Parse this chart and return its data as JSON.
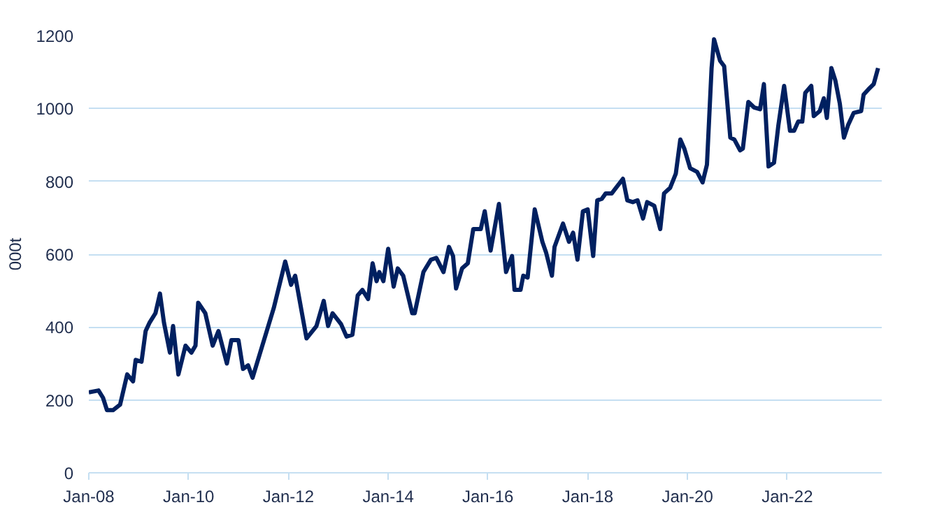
{
  "chart_data": {
    "type": "line",
    "ylabel": "000t",
    "grid": "y",
    "marker": "none",
    "line_style": "solid",
    "xlim": [
      "2008-01-01",
      "2023-11-24"
    ],
    "xticks": [
      {
        "value": "2008-01",
        "label": "Jan-08"
      },
      {
        "value": "2010-01",
        "label": "Jan-10"
      },
      {
        "value": "2012-01",
        "label": "Jan-12"
      },
      {
        "value": "2014-01",
        "label": "Jan-14"
      },
      {
        "value": "2016-01",
        "label": "Jan-16"
      },
      {
        "value": "2018-01",
        "label": "Jan-18"
      },
      {
        "value": "2020-01",
        "label": "Jan-20"
      },
      {
        "value": "2022-01",
        "label": "Jan-22"
      }
    ],
    "ylim": [
      0,
      1200
    ],
    "yticks": [
      0,
      200,
      400,
      600,
      800,
      1000,
      1200
    ],
    "x": [
      "2008-01-01",
      "2008-03-12",
      "2008-04-14",
      "2008-05-13",
      "2008-06-26",
      "2008-08-17",
      "2008-10-08",
      "2008-11-20",
      "2008-12-09",
      "2009-01-21",
      "2009-02-20",
      "2009-03-22",
      "2009-05-03",
      "2009-06-05",
      "2009-07-04",
      "2009-08-17",
      "2009-09-09",
      "2009-10-18",
      "2009-12-09",
      "2010-01-21",
      "2010-02-20",
      "2010-03-12",
      "2010-05-03",
      "2010-06-26",
      "2010-08-07",
      "2010-10-08",
      "2010-11-10",
      "2011-01-01",
      "2011-02-03",
      "2011-03-12",
      "2011-04-14",
      "2011-09-16",
      "2011-12-09",
      "2012-01-21",
      "2012-02-20",
      "2012-05-13",
      "2012-07-25",
      "2012-09-16",
      "2012-10-18",
      "2012-11-20",
      "2013-01-21",
      "2013-03-02",
      "2013-04-14",
      "2013-05-23",
      "2013-06-26",
      "2013-08-07",
      "2013-09-09",
      "2013-10-08",
      "2013-10-28",
      "2013-11-27",
      "2014-01-01",
      "2014-02-10",
      "2014-03-12",
      "2014-04-21",
      "2014-06-26",
      "2014-07-14",
      "2014-09-16",
      "2014-11-10",
      "2014-12-19",
      "2015-02-10",
      "2015-03-22",
      "2015-04-21",
      "2015-05-13",
      "2015-06-26",
      "2015-08-07",
      "2015-09-16",
      "2015-11-10",
      "2015-12-09",
      "2016-01-21",
      "2016-03-22",
      "2016-05-13",
      "2016-06-26",
      "2016-07-14",
      "2016-08-27",
      "2016-09-16",
      "2016-10-18",
      "2016-12-09",
      "2017-02-03",
      "2017-03-02",
      "2017-04-14",
      "2017-05-03",
      "2017-07-04",
      "2017-08-17",
      "2017-09-16",
      "2017-10-18",
      "2017-11-27",
      "2018-01-01",
      "2018-02-10",
      "2018-03-12",
      "2018-04-14",
      "2018-05-13",
      "2018-06-26",
      "2018-09-16",
      "2018-10-18",
      "2018-11-27",
      "2019-01-01",
      "2019-02-10",
      "2019-03-12",
      "2019-05-03",
      "2019-06-16",
      "2019-07-14",
      "2019-08-27",
      "2019-10-08",
      "2019-11-10",
      "2019-12-09",
      "2020-01-21",
      "2020-03-12",
      "2020-04-21",
      "2020-05-23",
      "2020-06-26",
      "2020-07-14",
      "2020-08-27",
      "2020-09-26",
      "2020-11-10",
      "2020-12-09",
      "2021-01-21",
      "2021-02-10",
      "2021-03-22",
      "2021-05-03",
      "2021-06-16",
      "2021-07-14",
      "2021-08-17",
      "2021-09-26",
      "2021-10-28",
      "2021-12-09",
      "2022-01-21",
      "2022-02-20",
      "2022-03-22",
      "2022-04-21",
      "2022-05-13",
      "2022-06-26",
      "2022-07-14",
      "2022-08-27",
      "2022-09-26",
      "2022-10-18",
      "2022-11-20",
      "2022-12-19",
      "2023-01-21",
      "2023-02-20",
      "2023-03-22",
      "2023-05-03",
      "2023-06-26",
      "2023-07-14",
      "2023-08-17",
      "2023-09-26",
      "2023-10-28"
    ],
    "series": [
      {
        "color": "#002060",
        "values": [
          221,
          226,
          206,
          172,
          172,
          187,
          270,
          251,
          310,
          305,
          389,
          413,
          438,
          492,
          413,
          330,
          403,
          270,
          349,
          330,
          349,
          467,
          438,
          349,
          389,
          300,
          364,
          364,
          285,
          295,
          261,
          452,
          580,
          516,
          541,
          369,
          403,
          472,
          403,
          438,
          408,
          374,
          379,
          487,
          502,
          477,
          575,
          526,
          551,
          526,
          615,
          511,
          561,
          541,
          438,
          438,
          551,
          585,
          590,
          551,
          620,
          595,
          506,
          561,
          575,
          669,
          669,
          718,
          610,
          738,
          551,
          595,
          502,
          502,
          541,
          536,
          723,
          634,
          605,
          541,
          620,
          684,
          634,
          659,
          585,
          718,
          723,
          595,
          748,
          752,
          767,
          767,
          807,
          748,
          743,
          748,
          698,
          743,
          733,
          669,
          767,
          782,
          821,
          915,
          890,
          836,
          826,
          797,
          846,
          1111,
          1190,
          1131,
          1116,
          920,
          915,
          885,
          890,
          1018,
          1003,
          998,
          1067,
          841,
          851,
          954,
          1062,
          939,
          939,
          964,
          964,
          1043,
          1062,
          979,
          993,
          1028,
          974,
          1111,
          1077,
          1013,
          920,
          954,
          988,
          993,
          1038,
          1052,
          1067,
          1111
        ]
      }
    ]
  }
}
